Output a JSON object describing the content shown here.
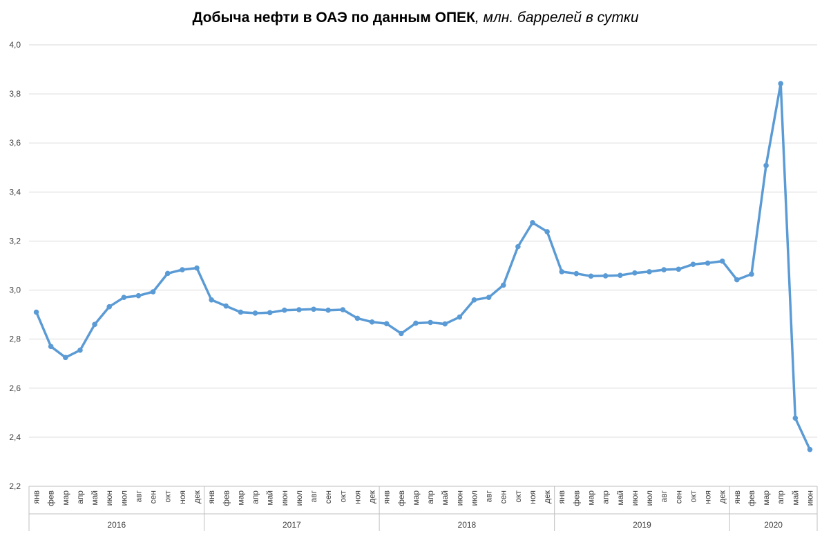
{
  "chart_data": {
    "type": "line",
    "title_bold": "Добыча нефти в ОАЭ по данным ОПЕК",
    "title_italic": ", млн. баррелей в сутки",
    "xlabel": "",
    "ylabel": "",
    "ylim": [
      2.2,
      4.0
    ],
    "yticks": [
      "2,2",
      "2,4",
      "2,6",
      "2,8",
      "3,0",
      "3,2",
      "3,4",
      "3,6",
      "3,8",
      "4,0"
    ],
    "grid": "horizontal",
    "legend": "none",
    "line_color": "#5b9bd5",
    "groups": [
      {
        "year": "2016",
        "months": [
          "янв",
          "фев",
          "мар",
          "апр",
          "май",
          "июн",
          "июл",
          "авг",
          "сен",
          "окт",
          "ноя",
          "дек"
        ],
        "values": [
          2.91,
          2.77,
          2.725,
          2.755,
          2.86,
          2.932,
          2.97,
          2.977,
          2.993,
          3.068,
          3.083,
          3.09
        ]
      },
      {
        "year": "2017",
        "months": [
          "янв",
          "фев",
          "мар",
          "апр",
          "май",
          "июн",
          "июл",
          "авг",
          "сен",
          "окт",
          "ноя",
          "дек"
        ],
        "values": [
          2.96,
          2.935,
          2.91,
          2.906,
          2.908,
          2.918,
          2.92,
          2.922,
          2.918,
          2.92,
          2.885,
          2.87
        ]
      },
      {
        "year": "2018",
        "months": [
          "янв",
          "фев",
          "мар",
          "апр",
          "май",
          "июн",
          "июл",
          "авг",
          "сен",
          "окт",
          "ноя",
          "дек"
        ],
        "values": [
          2.863,
          2.823,
          2.865,
          2.868,
          2.862,
          2.89,
          2.96,
          2.97,
          3.02,
          3.177,
          3.275,
          3.238
        ]
      },
      {
        "year": "2019",
        "months": [
          "янв",
          "фев",
          "мар",
          "апр",
          "май",
          "июн",
          "июл",
          "авг",
          "сен",
          "окт",
          "ноя",
          "дек"
        ],
        "values": [
          3.075,
          3.067,
          3.057,
          3.058,
          3.06,
          3.07,
          3.075,
          3.083,
          3.085,
          3.105,
          3.11,
          3.118
        ]
      },
      {
        "year": "2020",
        "months": [
          "янв",
          "фев",
          "мар",
          "апр",
          "май",
          "июн"
        ],
        "values": [
          3.042,
          3.065,
          3.508,
          3.842,
          2.478,
          2.35
        ]
      }
    ]
  }
}
